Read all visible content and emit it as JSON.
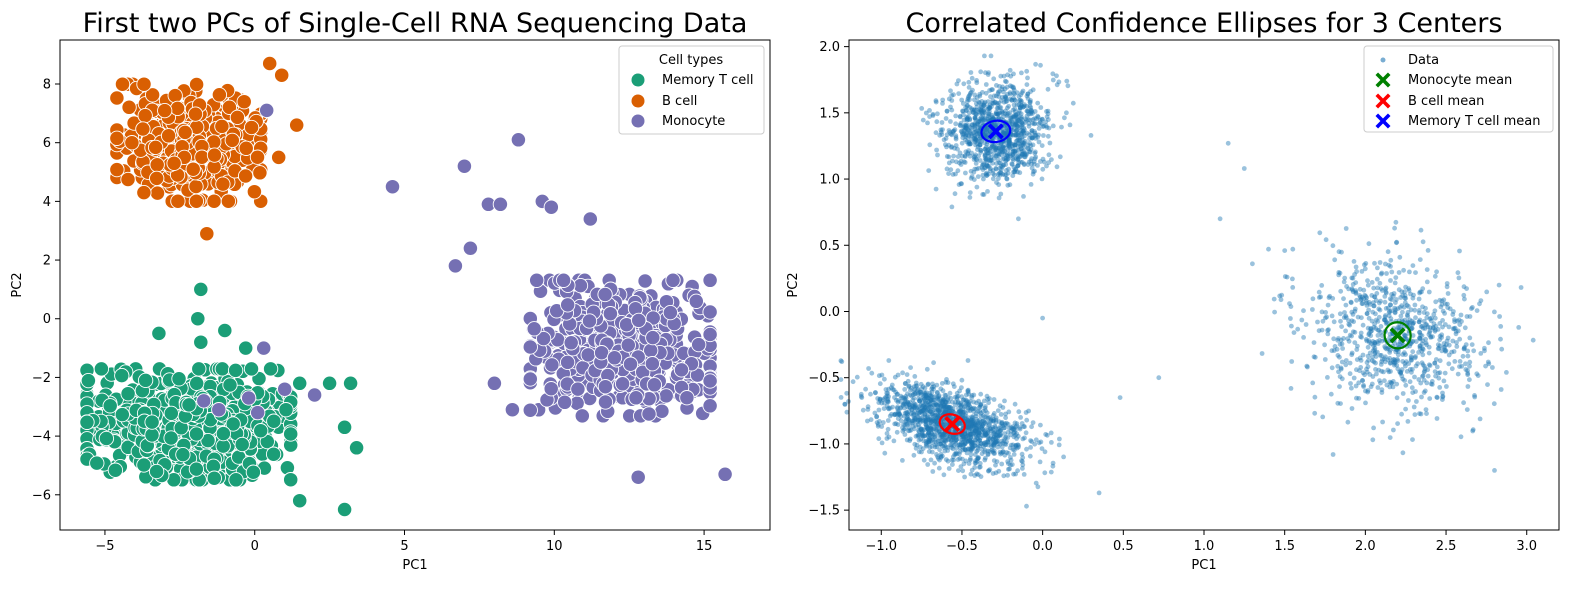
{
  "chart_data": [
    {
      "type": "scatter",
      "title": "First two PCs of Single-Cell RNA Sequencing Data",
      "xlabel": "PC1",
      "ylabel": "PC2",
      "xlim": [
        -6.5,
        17.2
      ],
      "ylim": [
        -7.2,
        9.5
      ],
      "xticks": [
        -5,
        0,
        5,
        10,
        15
      ],
      "yticks": [
        -6,
        -4,
        -2,
        0,
        2,
        4,
        6,
        8
      ],
      "legend": {
        "title": "Cell types",
        "placement": "top-right"
      },
      "series": [
        {
          "name": "Memory T cell",
          "color": "#1b9e77",
          "center": [
            -2.2,
            -3.6
          ],
          "spread": [
            1.7,
            0.9
          ],
          "count": 700,
          "extra_points": [
            [
              -1.8,
              1.0
            ],
            [
              -1.9,
              0.0
            ],
            [
              -3.2,
              -0.5
            ],
            [
              -1.0,
              -0.4
            ],
            [
              -0.3,
              -1.0
            ],
            [
              1.5,
              -2.2
            ],
            [
              2.5,
              -2.2
            ],
            [
              3.2,
              -2.2
            ],
            [
              3.0,
              -3.7
            ],
            [
              3.0,
              -6.5
            ],
            [
              3.4,
              -4.4
            ],
            [
              1.5,
              -6.2
            ],
            [
              -1.8,
              -0.8
            ]
          ]
        },
        {
          "name": "B cell",
          "color": "#d95f02",
          "center": [
            -2.2,
            6.0
          ],
          "spread": [
            1.2,
            0.95
          ],
          "count": 420,
          "extra_points": [
            [
              0.5,
              8.7
            ],
            [
              0.9,
              8.3
            ],
            [
              1.4,
              6.6
            ],
            [
              -1.6,
              2.9
            ],
            [
              -3.7,
              4.3
            ],
            [
              -4.1,
              6.0
            ],
            [
              0.8,
              5.5
            ]
          ]
        },
        {
          "name": "Monocyte",
          "color": "#7570b3",
          "center": [
            12.2,
            -1.0
          ],
          "spread": [
            1.5,
            1.1
          ],
          "count": 500,
          "extra_points": [
            [
              4.6,
              4.5
            ],
            [
              7.0,
              5.2
            ],
            [
              8.8,
              6.1
            ],
            [
              7.2,
              2.4
            ],
            [
              6.7,
              1.8
            ],
            [
              7.8,
              3.9
            ],
            [
              8.2,
              3.9
            ],
            [
              8.0,
              -2.2
            ],
            [
              8.6,
              -3.1
            ],
            [
              9.6,
              4.0
            ],
            [
              9.9,
              3.8
            ],
            [
              11.2,
              3.4
            ],
            [
              12.8,
              -5.4
            ],
            [
              15.7,
              -5.3
            ],
            [
              0.4,
              7.1
            ],
            [
              -1.7,
              -2.8
            ],
            [
              -1.2,
              -3.1
            ],
            [
              -0.2,
              -2.7
            ],
            [
              0.3,
              -1.0
            ],
            [
              2.0,
              -2.6
            ],
            [
              1.0,
              -2.4
            ],
            [
              0.1,
              -3.2
            ]
          ]
        }
      ]
    },
    {
      "type": "scatter",
      "title": "Correlated Confidence Ellipses for 3 Centers",
      "xlabel": "PC1",
      "ylabel": "PC2",
      "xlim": [
        -1.2,
        3.2
      ],
      "ylim": [
        -1.65,
        2.05
      ],
      "xticks": [
        -1.0,
        -0.5,
        0.0,
        0.5,
        1.0,
        1.5,
        2.0,
        2.5,
        3.0
      ],
      "yticks": [
        -1.5,
        -1.0,
        -0.5,
        0.0,
        0.5,
        1.0,
        1.5,
        2.0
      ],
      "legend": {
        "placement": "top-right"
      },
      "data_color": "#1f77b4",
      "series": [
        {
          "name": "Data",
          "color": "#1f77b4"
        },
        {
          "name": "Monocyte mean",
          "color": "#008000",
          "mean": [
            2.2,
            -0.18
          ],
          "ellipse_radius": [
            0.08,
            0.1
          ],
          "ellipse_angle": 45
        },
        {
          "name": "B cell mean",
          "color": "#ff0000",
          "mean": [
            -0.56,
            -0.85
          ],
          "ellipse_radius": [
            0.08,
            0.07
          ],
          "ellipse_angle": -20
        },
        {
          "name": "Memory T cell mean",
          "color": "#0000ff",
          "mean": [
            -0.29,
            1.36
          ],
          "ellipse_radius": [
            0.09,
            0.08
          ],
          "ellipse_angle": 10
        }
      ],
      "clusters": [
        {
          "center": [
            -0.29,
            1.36
          ],
          "spread": [
            0.16,
            0.19
          ],
          "count": 1050,
          "rho": 0.0
        },
        {
          "center": [
            -0.56,
            -0.85
          ],
          "spread": [
            0.23,
            0.16
          ],
          "count": 1350,
          "rho": -0.5
        },
        {
          "center": [
            2.2,
            -0.18
          ],
          "spread": [
            0.28,
            0.3
          ],
          "count": 820,
          "rho": -0.15
        }
      ],
      "extra_points": [
        [
          1.15,
          1.27
        ],
        [
          1.25,
          1.08
        ],
        [
          1.1,
          0.7
        ],
        [
          1.3,
          0.36
        ],
        [
          1.5,
          0.46
        ],
        [
          1.55,
          0.47
        ],
        [
          0.72,
          -0.5
        ],
        [
          0.0,
          -0.05
        ],
        [
          0.15,
          1.74
        ],
        [
          0.3,
          1.33
        ],
        [
          -0.15,
          0.7
        ],
        [
          1.4,
          0.47
        ],
        [
          1.8,
          -1.08
        ],
        [
          2.95,
          -0.12
        ],
        [
          2.8,
          -1.2
        ],
        [
          0.35,
          -1.37
        ],
        [
          0.48,
          -0.65
        ],
        [
          -0.1,
          -1.47
        ]
      ]
    }
  ]
}
